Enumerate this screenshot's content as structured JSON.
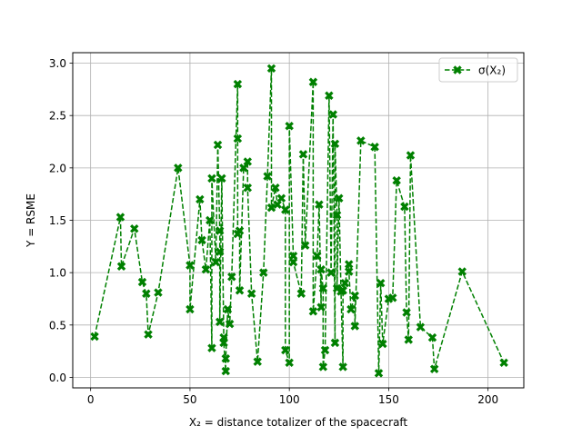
{
  "chart_data": {
    "type": "line",
    "xlabel": "X₂ = distance totalizer of the spacecraft",
    "ylabel": "Y = RSME",
    "xlim": [
      -9,
      218
    ],
    "ylim": [
      -0.1,
      3.1
    ],
    "xticks": [
      0,
      50,
      100,
      150,
      200
    ],
    "xtick_labels": [
      "0",
      "50",
      "100",
      "150",
      "200"
    ],
    "yticks": [
      0.0,
      0.5,
      1.0,
      1.5,
      2.0,
      2.5,
      3.0
    ],
    "ytick_labels": [
      "0.0",
      "0.5",
      "1.0",
      "1.5",
      "2.0",
      "2.5",
      "3.0"
    ],
    "grid": true,
    "legend_position": "top-right",
    "series": [
      {
        "name": "σ(X₂)",
        "color": "#008000",
        "line_style": "dashed",
        "marker": "filled-x",
        "points": [
          [
            2,
            0.39
          ],
          [
            15,
            1.53
          ],
          [
            15.5,
            1.06
          ],
          [
            22,
            1.42
          ],
          [
            26,
            0.91
          ],
          [
            28,
            0.8
          ],
          [
            29,
            0.41
          ],
          [
            34,
            0.81
          ],
          [
            44,
            2.0
          ],
          [
            50,
            1.07
          ],
          [
            50,
            0.65
          ],
          [
            55,
            1.7
          ],
          [
            56,
            1.31
          ],
          [
            58,
            1.03
          ],
          [
            60,
            1.5
          ],
          [
            61,
            0.28
          ],
          [
            61,
            1.9
          ],
          [
            63,
            1.1
          ],
          [
            64,
            2.22
          ],
          [
            65,
            1.4
          ],
          [
            65,
            1.2
          ],
          [
            65,
            0.53
          ],
          [
            66,
            1.9
          ],
          [
            67,
            0.38
          ],
          [
            67,
            0.33
          ],
          [
            68,
            0.06
          ],
          [
            68,
            0.18
          ],
          [
            69,
            0.65
          ],
          [
            70,
            0.51
          ],
          [
            71,
            0.96
          ],
          [
            74,
            2.8
          ],
          [
            74,
            2.28
          ],
          [
            74,
            1.37
          ],
          [
            75,
            1.4
          ],
          [
            75,
            0.83
          ],
          [
            77,
            2.0
          ],
          [
            79,
            2.06
          ],
          [
            79,
            1.81
          ],
          [
            81,
            0.8
          ],
          [
            84,
            0.15
          ],
          [
            87,
            1.0
          ],
          [
            89,
            1.92
          ],
          [
            91,
            2.95
          ],
          [
            91,
            1.62
          ],
          [
            93,
            1.81
          ],
          [
            94,
            1.65
          ],
          [
            96,
            1.71
          ],
          [
            98,
            1.6
          ],
          [
            98,
            0.26
          ],
          [
            100,
            0.14
          ],
          [
            100,
            2.4
          ],
          [
            102,
            1.16
          ],
          [
            102,
            1.1
          ],
          [
            106,
            0.8
          ],
          [
            107,
            2.13
          ],
          [
            108,
            1.26
          ],
          [
            112,
            2.82
          ],
          [
            112,
            0.63
          ],
          [
            114,
            1.16
          ],
          [
            115,
            1.65
          ],
          [
            116,
            0.67
          ],
          [
            116,
            1.03
          ],
          [
            117,
            0.85
          ],
          [
            117,
            0.1
          ],
          [
            118,
            0.26
          ],
          [
            120,
            2.69
          ],
          [
            121,
            1.0
          ],
          [
            122,
            2.51
          ],
          [
            123,
            0.33
          ],
          [
            123,
            2.23
          ],
          [
            124,
            1.55
          ],
          [
            124,
            0.85
          ],
          [
            125,
            1.71
          ],
          [
            126,
            0.82
          ],
          [
            127,
            0.1
          ],
          [
            127,
            0.83
          ],
          [
            128,
            0.9
          ],
          [
            130,
            1.08
          ],
          [
            130,
            1.01
          ],
          [
            131,
            0.65
          ],
          [
            133,
            0.78
          ],
          [
            133,
            0.49
          ],
          [
            136,
            2.26
          ],
          [
            143,
            2.2
          ],
          [
            145,
            0.04
          ],
          [
            146,
            0.9
          ],
          [
            147,
            0.32
          ],
          [
            150,
            0.75
          ],
          [
            152,
            0.76
          ],
          [
            154,
            1.88
          ],
          [
            158,
            1.63
          ],
          [
            159,
            0.62
          ],
          [
            160,
            0.36
          ],
          [
            161,
            2.12
          ],
          [
            166,
            0.48
          ],
          [
            172,
            0.38
          ],
          [
            173,
            0.08
          ],
          [
            187,
            1.01
          ],
          [
            208,
            0.14
          ]
        ]
      }
    ]
  }
}
